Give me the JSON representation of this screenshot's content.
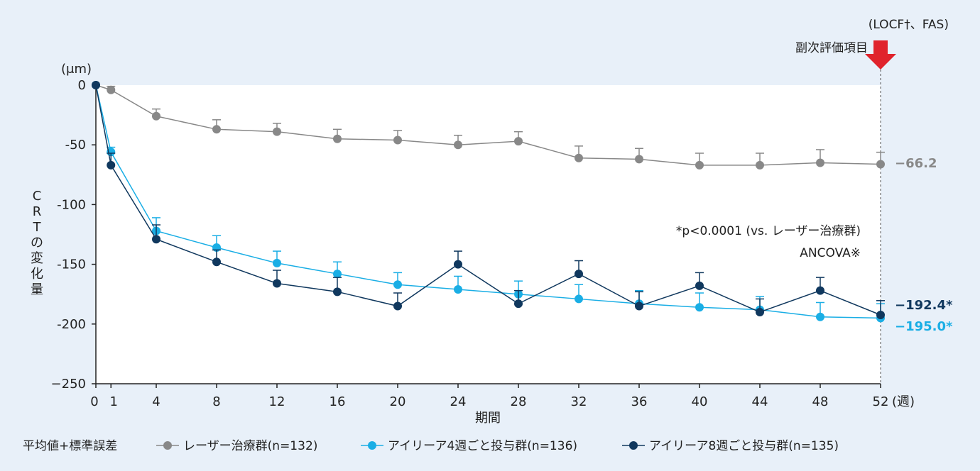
{
  "header": {
    "method_note": "(LOCF†、FAS)",
    "secondary_endpoint": "副次評価項目"
  },
  "annotations": {
    "pvalue": "*p<0.0001 (vs. レーザー治療群)",
    "ancova": "ANCOVA※"
  },
  "legend": {
    "stat_label": "平均値+標準誤差"
  },
  "colors": {
    "background": "#e8f0f9",
    "plot_area": "#ffffff",
    "laser": "#888888",
    "q4w": "#1aaee5",
    "q8w": "#10385e",
    "arrow": "#e0232c"
  },
  "chart_data": {
    "type": "line",
    "title": "",
    "xlabel": "期間",
    "xunit": "(週)",
    "ylabel": "CRTの変化量",
    "yunit": "(μm)",
    "ylim": [
      -250,
      0
    ],
    "xlim": [
      0,
      52
    ],
    "x_ticks": [
      0,
      1,
      4,
      8,
      12,
      16,
      20,
      24,
      28,
      32,
      36,
      40,
      44,
      48,
      52
    ],
    "y_ticks": [
      0,
      -50,
      -100,
      -150,
      -200,
      -250
    ],
    "y_tick_labels": [
      "0",
      "-50",
      "-100",
      "-150",
      "-200",
      "−250"
    ],
    "grid": false,
    "legend_position": "bottom",
    "x": [
      0,
      1,
      4,
      8,
      12,
      16,
      20,
      24,
      28,
      32,
      36,
      40,
      44,
      48,
      52
    ],
    "series": [
      {
        "name": "レーザー治療群(n=132)",
        "key": "laser",
        "values": [
          0,
          -4,
          -26,
          -37,
          -39,
          -45,
          -46,
          -50,
          -47,
          -61,
          -62,
          -67,
          -67,
          -65,
          -66.2
        ],
        "se": [
          0,
          3,
          6,
          8,
          7,
          8,
          8,
          8,
          8,
          10,
          9,
          10,
          10,
          11,
          10
        ],
        "end_label": "−66.2"
      },
      {
        "name": "アイリーア4週ごと投与群(n=136)",
        "key": "q4w",
        "values": [
          0,
          -56,
          -122,
          -136,
          -149,
          -158,
          -167,
          -171,
          -175,
          -179,
          -183,
          -186,
          -188,
          -194,
          -195.0
        ],
        "se": [
          0,
          4,
          11,
          10,
          10,
          10,
          10,
          11,
          11,
          12,
          11,
          12,
          11,
          12,
          12
        ],
        "end_label": "−195.0*"
      },
      {
        "name": "アイリーア8週ごと投与群(n=135)",
        "key": "q8w",
        "values": [
          0,
          -67,
          -129,
          -148,
          -166,
          -173,
          -185,
          -150,
          -183,
          -158,
          -185,
          -168,
          -190,
          -172,
          -192.4
        ],
        "se": [
          0,
          10,
          12,
          10,
          11,
          12,
          11,
          11,
          11,
          11,
          12,
          11,
          11,
          11,
          12
        ],
        "end_label": "−192.4*"
      }
    ]
  }
}
